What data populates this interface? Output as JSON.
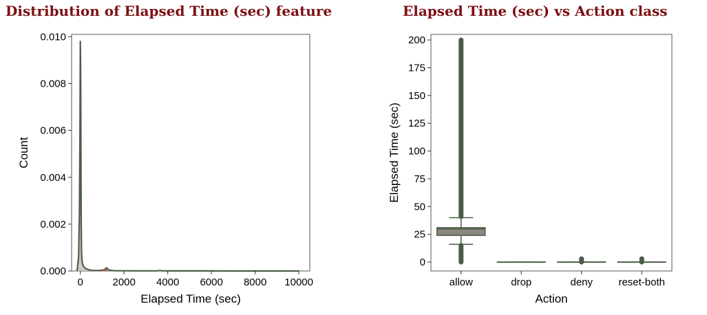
{
  "chart_data": [
    {
      "type": "area",
      "title": "Distribution of Elapsed Time (sec) feature",
      "xlabel": "Elapsed Time (sec)",
      "ylabel": "Count",
      "xlim": [
        -400,
        10500
      ],
      "ylim": [
        0,
        0.0101
      ],
      "xticks": [
        0,
        2000,
        4000,
        6000,
        8000,
        10000
      ],
      "xtick_labels": [
        "0",
        "2000",
        "4000",
        "6000",
        "8000",
        "10000"
      ],
      "yticks": [
        0,
        0.002,
        0.004,
        0.006,
        0.008,
        0.01
      ],
      "ytick_labels": [
        "0.000",
        "0.002",
        "0.004",
        "0.006",
        "0.008",
        "0.010"
      ],
      "grid": false,
      "series": [
        {
          "x": [
            -150,
            -80,
            -40,
            -15,
            0,
            10,
            20,
            30,
            40,
            55,
            70,
            90,
            120,
            160,
            220,
            300,
            400,
            500,
            650,
            800,
            1000,
            1150,
            1200,
            1250,
            1350,
            1600,
            2000,
            2500,
            3000,
            3500,
            3650,
            3750,
            4200,
            5000,
            6000,
            7000,
            8000,
            9000,
            10000
          ],
          "y": [
            0,
            0.0006,
            0.0025,
            0.006,
            0.0098,
            0.009,
            0.0075,
            0.0045,
            0.0018,
            0.0009,
            0.0005,
            0.00035,
            0.00025,
            0.00018,
            0.00012,
            8e-05,
            5e-05,
            3e-05,
            2e-05,
            2e-05,
            3e-05,
            8e-05,
            0.00014,
            8e-05,
            3e-05,
            1e-05,
            1e-05,
            5e-06,
            5e-06,
            5e-06,
            2e-05,
            5e-06,
            3e-06,
            2e-06,
            2e-06,
            1e-06,
            1e-06,
            1e-06,
            0
          ]
        }
      ],
      "colors": {
        "line": "#4a5e46",
        "fill": "#c8c2bc",
        "accent": "#c94f2d"
      }
    },
    {
      "type": "box",
      "title": "Elapsed Time (sec) vs Action class",
      "xlabel": "Action",
      "ylabel": "Elapsed Time (sec)",
      "ylim": [
        -8,
        205
      ],
      "yticks": [
        0,
        25,
        50,
        75,
        100,
        125,
        150,
        175,
        200
      ],
      "ytick_labels": [
        "0",
        "25",
        "50",
        "75",
        "100",
        "125",
        "150",
        "175",
        "200"
      ],
      "categories": [
        "allow",
        "drop",
        "deny",
        "reset-both"
      ],
      "grid": false,
      "boxes": [
        {
          "category": "allow",
          "whisker_low": 16,
          "q1": 24,
          "median": 30,
          "q3": 31,
          "whisker_high": 40,
          "outliers_low": [
            0,
            15
          ],
          "outliers_high": [
            41,
            200
          ]
        },
        {
          "category": "drop",
          "whisker_low": 0,
          "q1": 0,
          "median": 0,
          "q3": 0,
          "whisker_high": 0,
          "outliers_low": [],
          "outliers_high": []
        },
        {
          "category": "deny",
          "whisker_low": 0,
          "q1": 0,
          "median": 0,
          "q3": 0,
          "whisker_high": 0,
          "outliers_low": [],
          "outliers_high": [
            0,
            3
          ]
        },
        {
          "category": "reset-both",
          "whisker_low": 0,
          "q1": 0,
          "median": 0,
          "q3": 0,
          "whisker_high": 0,
          "outliers_low": [],
          "outliers_high": [
            0,
            3
          ]
        }
      ],
      "colors": {
        "box": "#8c8681",
        "line": "#4a5e46",
        "outlier": "#4a5e46"
      }
    }
  ]
}
